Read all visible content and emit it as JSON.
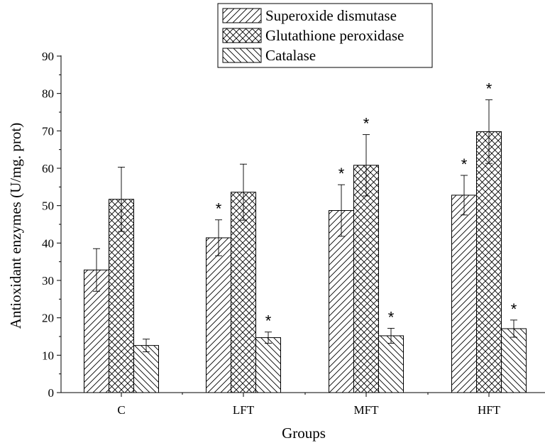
{
  "chart_data": {
    "type": "bar",
    "xlabel": "Groups",
    "ylabel": "Antioxidant enzymes (U/mg. prot)",
    "ylim": [
      0,
      90
    ],
    "yticks": [
      0,
      10,
      20,
      30,
      40,
      50,
      60,
      70,
      80,
      90
    ],
    "categories": [
      "C",
      "LFT",
      "MFT",
      "HFT"
    ],
    "series": [
      {
        "name": "Superoxide dismutase",
        "pattern": "forward-hatch",
        "values": [
          32.8,
          41.4,
          48.7,
          52.8
        ],
        "errors": [
          5.7,
          4.8,
          6.9,
          5.3
        ],
        "significance": [
          "",
          "*",
          "*",
          "*"
        ]
      },
      {
        "name": "Glutathione peroxidase",
        "pattern": "cross-hatch",
        "values": [
          51.7,
          53.6,
          60.8,
          69.8
        ],
        "errors": [
          8.6,
          7.5,
          8.2,
          8.5
        ],
        "significance": [
          "",
          "",
          "*",
          "*"
        ]
      },
      {
        "name": "Catalase",
        "pattern": "back-hatch",
        "values": [
          12.6,
          14.7,
          15.2,
          17.1
        ],
        "errors": [
          1.7,
          1.5,
          2.0,
          2.3
        ],
        "significance": [
          "",
          "*",
          "*",
          "*"
        ]
      }
    ],
    "legend_position": "top-center",
    "grid": false,
    "colors": {
      "ink": "#000000",
      "background": "#ffffff"
    }
  }
}
